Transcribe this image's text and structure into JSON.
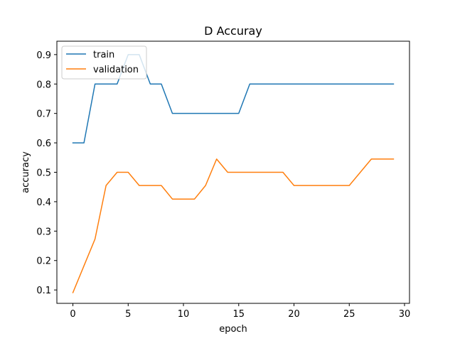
{
  "chart_data": {
    "type": "line",
    "title": "D Accuray",
    "xlabel": "epoch",
    "ylabel": "accuracy",
    "xlim": [
      -1.45,
      30.45
    ],
    "ylim": [
      0.0545,
      0.9455
    ],
    "xticks": [
      0,
      5,
      10,
      15,
      20,
      25,
      30
    ],
    "yticks": [
      0.1,
      0.2,
      0.3,
      0.4,
      0.5,
      0.6,
      0.7,
      0.8,
      0.9
    ],
    "grid": false,
    "legend_position": "upper-left",
    "x": [
      0,
      1,
      2,
      3,
      4,
      5,
      6,
      7,
      8,
      9,
      10,
      11,
      12,
      13,
      14,
      15,
      16,
      17,
      18,
      19,
      20,
      21,
      22,
      23,
      24,
      25,
      26,
      27,
      28,
      29
    ],
    "series": [
      {
        "name": "train",
        "color": "#1f77b4",
        "values": [
          0.6,
          0.6,
          0.8,
          0.8,
          0.8,
          0.9,
          0.9,
          0.8,
          0.8,
          0.7,
          0.7,
          0.7,
          0.7,
          0.7,
          0.7,
          0.7,
          0.8,
          0.8,
          0.8,
          0.8,
          0.8,
          0.8,
          0.8,
          0.8,
          0.8,
          0.8,
          0.8,
          0.8,
          0.8,
          0.8
        ]
      },
      {
        "name": "validation",
        "color": "#ff7f0e",
        "values": [
          0.091,
          0.182,
          0.273,
          0.455,
          0.5,
          0.5,
          0.455,
          0.455,
          0.455,
          0.409,
          0.409,
          0.409,
          0.455,
          0.545,
          0.5,
          0.5,
          0.5,
          0.5,
          0.5,
          0.5,
          0.455,
          0.455,
          0.455,
          0.455,
          0.455,
          0.455,
          0.5,
          0.545,
          0.545,
          0.545
        ]
      }
    ]
  }
}
